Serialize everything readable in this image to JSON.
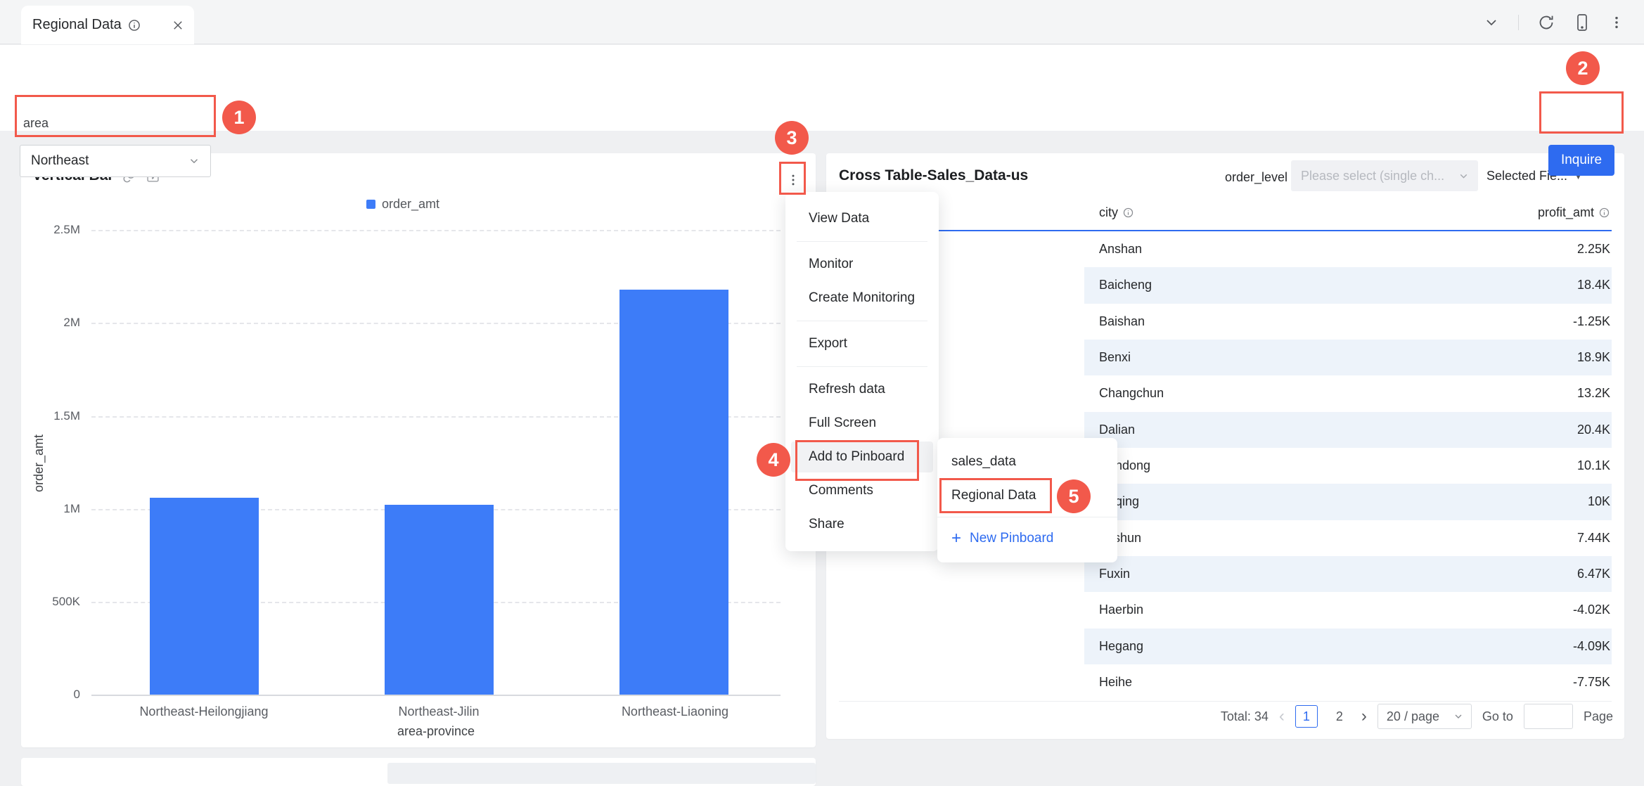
{
  "colors": {
    "accent_blue": "#2e6bf0",
    "bar_blue": "#3d7cf8",
    "annotation_red": "#f2594b",
    "row_alt_blue": "#edf3fa"
  },
  "tab_bar": {
    "tab_title": "Regional Data",
    "right_icons": [
      "chevron-down",
      "refresh",
      "mobile-preview",
      "more-vertical"
    ]
  },
  "filter_bar": {
    "field_label": "area",
    "field_value": "Northeast",
    "inquire_label": "Inquire"
  },
  "annotations": {
    "badges": [
      "1",
      "2",
      "3",
      "4",
      "5"
    ]
  },
  "left_card": {
    "title": "Vertical Bar",
    "title_icons": [
      "link",
      "filter-frame"
    ],
    "legend_label": "order_amt"
  },
  "chart_data": {
    "type": "bar",
    "title": "Vertical Bar",
    "legend": [
      "order_amt"
    ],
    "legend_position": "top-center",
    "categories": [
      "Northeast-Heilongjiang",
      "Northeast-Jilin",
      "Northeast-Liaoning"
    ],
    "series": [
      {
        "name": "order_amt",
        "values": [
          1060000,
          1020000,
          2180000
        ]
      }
    ],
    "xlabel": "area-province",
    "ylabel": "order_amt",
    "ylim": [
      0,
      2500000
    ],
    "grid": "horizontal-dashed",
    "yticks": [
      {
        "v": 2500000,
        "label": "2.5M"
      },
      {
        "v": 2000000,
        "label": "2M"
      },
      {
        "v": 1500000,
        "label": "1.5M"
      },
      {
        "v": 1000000,
        "label": "1M"
      },
      {
        "v": 500000,
        "label": "500K"
      },
      {
        "v": 0,
        "label": "0"
      }
    ]
  },
  "context_menu": {
    "groups": [
      [
        "View Data"
      ],
      [
        "Monitor",
        "Create Monitoring"
      ],
      [
        "Export"
      ],
      [
        "Refresh data",
        "Full Screen",
        "Add to Pinboard",
        "Comments",
        "Share"
      ]
    ],
    "highlighted": "Add to Pinboard"
  },
  "pinboard_submenu": {
    "items": [
      "sales_data",
      "Regional Data"
    ],
    "highlighted": "Regional Data",
    "new_action": "New Pinboard",
    "new_action_icon": "plus"
  },
  "right_card": {
    "title": "Cross Table-Sales_Data-us",
    "control_label": "order_level",
    "select_placeholder": "Please select (single ch...",
    "selected_fields_label": "Selected Fie...",
    "columns": [
      {
        "label": "city",
        "icon": "info-circle"
      },
      {
        "label": "profit_amt",
        "icon": "info-circle"
      }
    ],
    "rows": [
      {
        "city": "Anshan",
        "profit_amt": "2.25K"
      },
      {
        "city": "Baicheng",
        "profit_amt": "18.4K"
      },
      {
        "city": "Baishan",
        "profit_amt": "-1.25K"
      },
      {
        "city": "Benxi",
        "profit_amt": "18.9K"
      },
      {
        "city": "Changchun",
        "profit_amt": "13.2K"
      },
      {
        "city": "Dalian",
        "profit_amt": "20.4K"
      },
      {
        "city": "Dandong",
        "profit_amt": "10.1K"
      },
      {
        "city": "Daqing",
        "profit_amt": "10K"
      },
      {
        "city": "Fushun",
        "profit_amt": "7.44K"
      },
      {
        "city": "Fuxin",
        "profit_amt": "6.47K"
      },
      {
        "city": "Haerbin",
        "profit_amt": "-4.02K"
      },
      {
        "city": "Hegang",
        "profit_amt": "-4.09K"
      },
      {
        "city": "Heihe",
        "profit_amt": "-7.75K"
      }
    ],
    "pagination": {
      "total_label": "Total: 34",
      "pages": [
        "1",
        "2"
      ],
      "active_page": "1",
      "page_size": "20 / page",
      "goto_label": "Go to",
      "goto_value": "",
      "page_label": "Page"
    }
  }
}
